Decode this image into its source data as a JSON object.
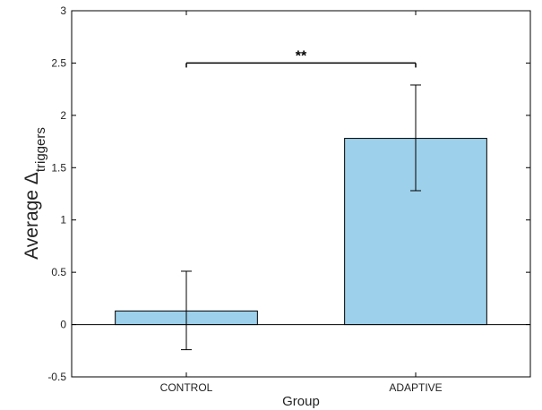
{
  "colors": {
    "bar_fill": "#9dd0ea",
    "bar_stroke": "#000000",
    "axis": "#000000"
  },
  "chart_data": {
    "type": "bar",
    "categories": [
      "CONTROL",
      "ADAPTIVE"
    ],
    "values": [
      0.13,
      1.78
    ],
    "error_bars": [
      {
        "low": -0.24,
        "high": 0.51
      },
      {
        "low": 1.28,
        "high": 2.29
      }
    ],
    "xlabel": "Group",
    "ylabel": {
      "main": "Average Δ",
      "subscript": "triggers"
    },
    "ylim": [
      -0.5,
      3
    ],
    "yticks": [
      "-0.5",
      "0",
      "0.5",
      "1",
      "1.5",
      "2",
      "2.5",
      "3"
    ],
    "ytick_values": [
      -0.5,
      0,
      0.5,
      1,
      1.5,
      2,
      2.5,
      3
    ],
    "baseline": 0,
    "significance": {
      "between": [
        "CONTROL",
        "ADAPTIVE"
      ],
      "label": "**",
      "y": 2.5
    },
    "grid": false,
    "legend": "none"
  }
}
